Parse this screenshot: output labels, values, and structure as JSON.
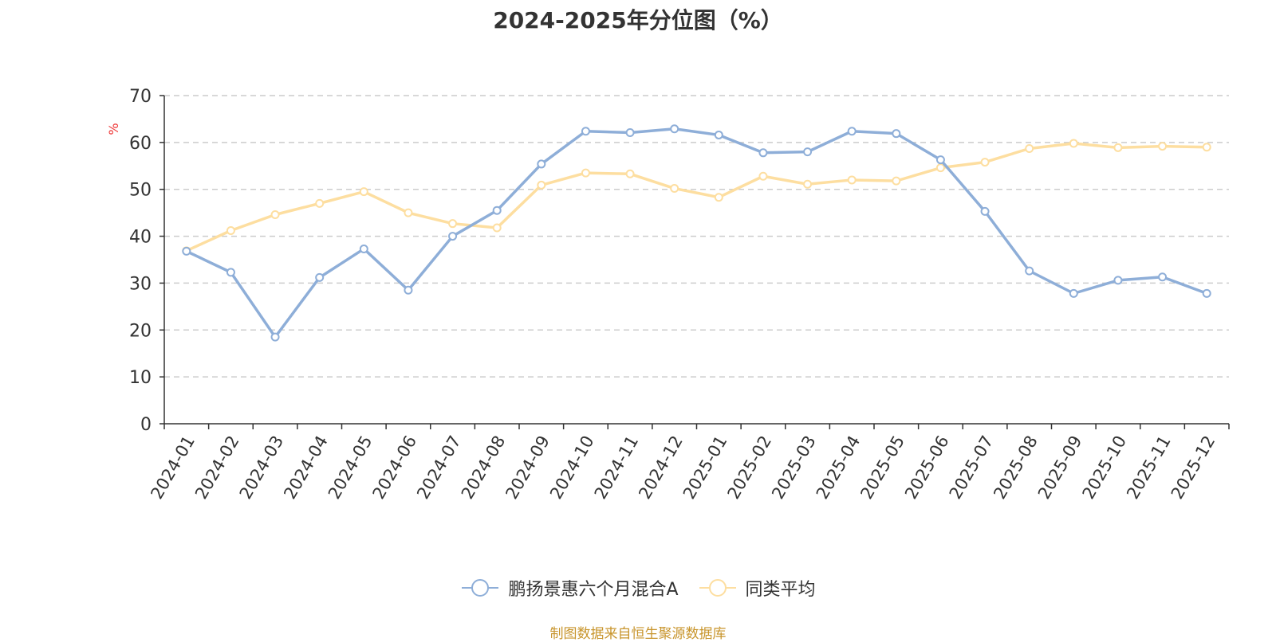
{
  "chart_data": {
    "type": "line",
    "title": "2024-2025年分位图（%）",
    "ylabel": "%",
    "xlabel": "",
    "ylim": [
      0,
      70
    ],
    "yticks": [
      0,
      10,
      20,
      30,
      40,
      50,
      60,
      70
    ],
    "grid": true,
    "legend_position": "bottom",
    "categories": [
      "2024-01",
      "2024-02",
      "2024-03",
      "2024-04",
      "2024-05",
      "2024-06",
      "2024-07",
      "2024-08",
      "2024-09",
      "2024-10",
      "2024-11",
      "2024-12",
      "2025-01",
      "2025-02",
      "2025-03",
      "2025-04",
      "2025-05",
      "2025-06",
      "2025-07",
      "2025-08",
      "2025-09",
      "2025-10",
      "2025-11",
      "2025-12"
    ],
    "series": [
      {
        "name": "鹏扬景惠六个月混合A",
        "color": "#8eaed8",
        "values": [
          36.8,
          32.3,
          18.5,
          31.2,
          37.3,
          28.5,
          40.0,
          45.5,
          55.4,
          62.4,
          62.1,
          62.9,
          61.6,
          57.8,
          58.0,
          62.4,
          61.9,
          56.3,
          45.3,
          32.6,
          27.8,
          30.6,
          31.3,
          27.8
        ]
      },
      {
        "name": "同类平均",
        "color": "#fddea0",
        "values": [
          36.9,
          41.2,
          44.6,
          47.0,
          49.5,
          45.0,
          42.7,
          41.8,
          50.9,
          53.5,
          53.3,
          50.2,
          48.3,
          52.8,
          51.1,
          52.0,
          51.8,
          54.6,
          55.8,
          58.7,
          59.8,
          58.9,
          59.2,
          59.0
        ]
      }
    ]
  },
  "source_note": "制图数据来自恒生聚源数据库"
}
